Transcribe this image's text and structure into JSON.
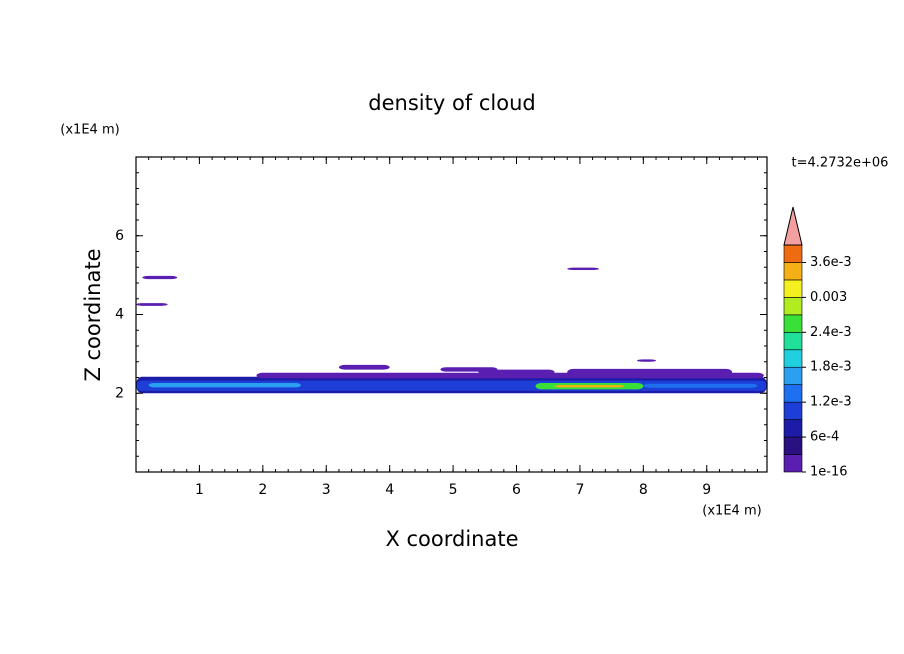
{
  "chart_data": {
    "type": "contour",
    "title": "density of cloud",
    "x_label": "X coordinate",
    "y_label": "Z coordinate",
    "x_unit": "(x1E4 m)",
    "y_unit": "(x1E4 m)",
    "time_label": "t=4.2732e+06",
    "xlim": [
      0,
      9.95
    ],
    "ylim": [
      0,
      8
    ],
    "xticks": [
      1,
      2,
      3,
      4,
      5,
      6,
      7,
      8,
      9
    ],
    "yticks": [
      2,
      4,
      6
    ],
    "colorbar": {
      "clim": [
        0,
        0.0039
      ],
      "colors": [
        "#5a1eb0",
        "#2a1080",
        "#1c1ca8",
        "#1e3ed8",
        "#1e70f0",
        "#2aa0f0",
        "#20d0e0",
        "#20e09a",
        "#38e038",
        "#b0ec20",
        "#f4f020",
        "#f4b014",
        "#f06a10"
      ],
      "extend_color": "#f4a0a0",
      "ticks": [
        {
          "value": 1e-16,
          "label": "1e-16"
        },
        {
          "value": 0.0006,
          "label": "6e-4"
        },
        {
          "value": 0.0012,
          "label": "1.2e-3"
        },
        {
          "value": 0.0018,
          "label": "1.8e-3"
        },
        {
          "value": 0.0024,
          "label": "2.4e-3"
        },
        0.003,
        {
          "value": 0.0036,
          "label": "3.6e-3"
        }
      ]
    },
    "patches": [
      {
        "x": [
          0,
          9.95
        ],
        "z": [
          2.0,
          2.42
        ],
        "value": 0.0006
      },
      {
        "x": [
          0,
          9.95
        ],
        "z": [
          2.06,
          2.32
        ],
        "value": 0.0009
      },
      {
        "x": [
          0.2,
          2.6
        ],
        "z": [
          2.15,
          2.26
        ],
        "value": 0.0015
      },
      {
        "x": [
          8.0,
          9.8
        ],
        "z": [
          2.14,
          2.24
        ],
        "value": 0.0014
      },
      {
        "x": [
          1.9,
          9.9
        ],
        "z": [
          2.38,
          2.52
        ],
        "value": 1e-16
      },
      {
        "x": [
          3.2,
          4.0
        ],
        "z": [
          2.6,
          2.72
        ],
        "value": 1e-16
      },
      {
        "x": [
          4.8,
          5.7
        ],
        "z": [
          2.55,
          2.66
        ],
        "value": 1e-16
      },
      {
        "x": [
          5.4,
          6.6
        ],
        "z": [
          2.48,
          2.6
        ],
        "value": 1e-16
      },
      {
        "x": [
          6.8,
          9.4
        ],
        "z": [
          2.45,
          2.62
        ],
        "value": 1e-16
      },
      {
        "x": [
          7.9,
          8.2
        ],
        "z": [
          2.8,
          2.86
        ],
        "value": 1e-16
      },
      {
        "x": [
          0.1,
          0.65
        ],
        "z": [
          4.9,
          4.98
        ],
        "value": 1e-16
      },
      {
        "x": [
          0,
          0.5
        ],
        "z": [
          4.22,
          4.29
        ],
        "value": 1e-16
      },
      {
        "x": [
          6.8,
          7.3
        ],
        "z": [
          5.13,
          5.19
        ],
        "value": 1e-16
      },
      {
        "x": [
          6.3,
          8.0
        ],
        "z": [
          2.1,
          2.26
        ],
        "value": 0.0024
      },
      {
        "x": [
          6.6,
          7.7
        ],
        "z": [
          2.15,
          2.21
        ],
        "value": 0.0033
      }
    ]
  }
}
